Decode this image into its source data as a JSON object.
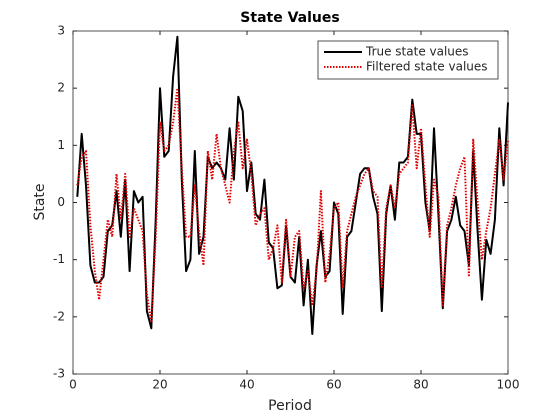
{
  "chart_data": {
    "type": "line",
    "title": "State Values",
    "xlabel": "Period",
    "ylabel": "State",
    "x": [
      1,
      2,
      3,
      4,
      5,
      6,
      7,
      8,
      9,
      10,
      11,
      12,
      13,
      14,
      15,
      16,
      17,
      18,
      19,
      20,
      21,
      22,
      23,
      24,
      25,
      26,
      27,
      28,
      29,
      30,
      31,
      32,
      33,
      34,
      35,
      36,
      37,
      38,
      39,
      40,
      41,
      42,
      43,
      44,
      45,
      46,
      47,
      48,
      49,
      50,
      51,
      52,
      53,
      54,
      55,
      56,
      57,
      58,
      59,
      60,
      61,
      62,
      63,
      64,
      65,
      66,
      67,
      68,
      69,
      70,
      71,
      72,
      73,
      74,
      75,
      76,
      77,
      78,
      79,
      80,
      81,
      82,
      83,
      84,
      85,
      86,
      87,
      88,
      89,
      90,
      91,
      92,
      93,
      94,
      95,
      96,
      97,
      98,
      99,
      100
    ],
    "series": [
      {
        "name": "True state values",
        "color": "#000000",
        "dash": "solid",
        "values": [
          0.1,
          1.2,
          0.3,
          -1.1,
          -1.4,
          -1.4,
          -1.3,
          -0.5,
          -0.4,
          0.2,
          -0.6,
          0.4,
          -1.2,
          0.2,
          0.0,
          0.1,
          -1.9,
          -2.2,
          -0.3,
          2.0,
          0.8,
          0.9,
          2.2,
          2.9,
          0.4,
          -1.2,
          -1.0,
          0.9,
          -0.9,
          -0.6,
          0.8,
          0.6,
          0.7,
          0.6,
          0.4,
          1.3,
          0.4,
          1.85,
          1.6,
          0.2,
          0.7,
          -0.2,
          -0.3,
          0.4,
          -0.7,
          -0.8,
          -1.5,
          -1.45,
          -0.4,
          -1.3,
          -1.4,
          -0.6,
          -1.8,
          -1.0,
          -2.3,
          -1.1,
          -0.5,
          -1.3,
          -1.2,
          0.0,
          -0.2,
          -1.95,
          -0.6,
          -0.5,
          0.0,
          0.5,
          0.6,
          0.6,
          0.1,
          -0.2,
          -1.9,
          -0.2,
          0.3,
          -0.3,
          0.7,
          0.7,
          0.8,
          1.8,
          1.2,
          1.2,
          0.0,
          -0.5,
          1.3,
          -0.2,
          -1.85,
          -0.5,
          -0.3,
          0.1,
          -0.4,
          -0.5,
          -1.1,
          0.9,
          -0.5,
          -1.7,
          -0.65,
          -0.9,
          -0.3,
          1.3,
          0.3,
          1.75
        ]
      },
      {
        "name": "Filtered state values",
        "color": "#e00000",
        "dash": "dotted",
        "values": [
          0.3,
          0.8,
          0.9,
          -0.4,
          -1.2,
          -1.7,
          -1.0,
          -0.3,
          -0.6,
          0.5,
          -0.3,
          0.5,
          -0.6,
          -0.1,
          -0.3,
          -0.5,
          -1.6,
          -2.1,
          -0.6,
          1.4,
          0.9,
          1.0,
          1.4,
          2.0,
          0.6,
          -0.6,
          -0.6,
          0.3,
          -0.5,
          -1.1,
          0.9,
          0.4,
          1.2,
          0.6,
          0.3,
          0.0,
          0.9,
          1.4,
          0.6,
          1.1,
          0.5,
          -0.4,
          -0.2,
          -0.1,
          -1.0,
          -0.8,
          -0.4,
          -1.4,
          -0.3,
          -1.3,
          -0.6,
          -0.5,
          -1.5,
          -1.2,
          -1.8,
          -1.2,
          0.2,
          -1.4,
          -0.9,
          -0.1,
          0.0,
          -1.5,
          -0.5,
          -0.2,
          0.1,
          0.3,
          0.5,
          0.6,
          0.2,
          0.1,
          -1.5,
          -0.1,
          0.3,
          -0.1,
          0.5,
          0.6,
          0.7,
          1.7,
          0.6,
          1.3,
          0.3,
          -0.6,
          0.4,
          0.1,
          -1.8,
          -0.4,
          -0.1,
          0.3,
          0.6,
          0.8,
          -1.3,
          1.1,
          0.0,
          -1.0,
          -0.5,
          -0.1,
          0.5,
          1.1,
          0.4,
          1.1
        ]
      }
    ],
    "xlim": [
      0,
      100
    ],
    "xticks": [
      0,
      20,
      40,
      60,
      80,
      100
    ],
    "ylim": [
      -3,
      3
    ],
    "yticks": [
      -3,
      -2,
      -1,
      0,
      1,
      2,
      3
    ],
    "legend": "top-right"
  }
}
